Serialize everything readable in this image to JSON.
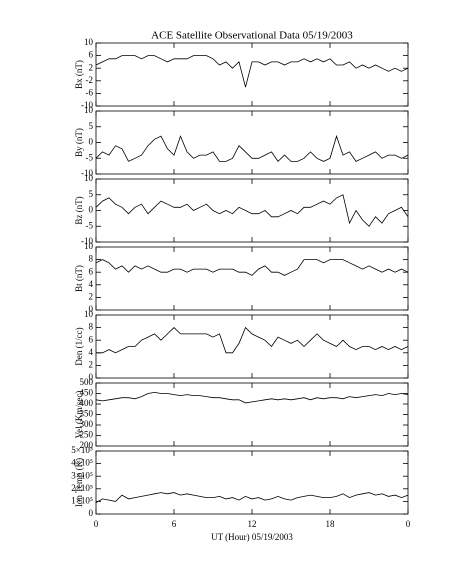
{
  "title": "ACE Satellite Observational Data  05/19/2003",
  "xlabel": "UT (Hour)  05/19/2003",
  "x": [
    0,
    0.5,
    1,
    1.5,
    2,
    2.5,
    3,
    3.5,
    4,
    4.5,
    5,
    5.5,
    6,
    6.5,
    7,
    7.5,
    8,
    8.5,
    9,
    9.5,
    10,
    10.5,
    11,
    11.5,
    12,
    12.5,
    13,
    13.5,
    14,
    14.5,
    15,
    15.5,
    16,
    16.5,
    17,
    17.5,
    18,
    18.5,
    19,
    19.5,
    20,
    20.5,
    21,
    21.5,
    22,
    22.5,
    23,
    23.5,
    24
  ],
  "xlim": [
    0,
    24
  ],
  "xticks": [
    0,
    6,
    12,
    18,
    {
      "value": 24,
      "label": "0"
    }
  ],
  "chart_data": [
    {
      "type": "line",
      "ylabel": "Bx (nT)",
      "color": "#000000",
      "ylim": [
        -10,
        10
      ],
      "yticks": [
        -10,
        -6,
        -2,
        2,
        6,
        10
      ],
      "values": [
        3,
        4,
        5,
        5,
        6,
        6,
        6,
        5,
        6,
        6,
        5,
        4,
        5,
        5,
        5,
        6,
        6,
        6,
        5,
        3,
        4,
        2,
        4,
        -4,
        4,
        4,
        3,
        4,
        4,
        3,
        4,
        4,
        5,
        4,
        5,
        4,
        5,
        3,
        3,
        4,
        2,
        3,
        2,
        3,
        2,
        1,
        2,
        1,
        2
      ]
    },
    {
      "type": "line",
      "ylabel": "By (nT)",
      "color": "#000000",
      "ylim": [
        -10,
        10
      ],
      "yticks": [
        -10,
        -5,
        0,
        5,
        10
      ],
      "values": [
        -5,
        -3,
        -4,
        -1,
        -2,
        -6,
        -5,
        -4,
        -1,
        1,
        2,
        -2,
        -4,
        2,
        -3,
        -5,
        -4,
        -4,
        -3,
        -6,
        -6,
        -5,
        -1,
        -3,
        -5,
        -5,
        -4,
        -3,
        -6,
        -4,
        -6,
        -6,
        -5,
        -3,
        -5,
        -6,
        -5,
        2,
        -4,
        -3,
        -6,
        -5,
        -4,
        -3,
        -5,
        -4,
        -4,
        -5,
        -4
      ]
    },
    {
      "type": "line",
      "ylabel": "Bz (nT)",
      "color": "#000000",
      "ylim": [
        -10,
        10
      ],
      "yticks": [
        -10,
        -5,
        0,
        5,
        10
      ],
      "values": [
        1,
        3,
        4,
        2,
        1,
        -1,
        1,
        2,
        -1,
        1,
        3,
        2,
        1,
        1,
        2,
        0,
        1,
        2,
        0,
        -1,
        0,
        -1,
        1,
        0,
        -1,
        -1,
        0,
        -2,
        -2,
        -1,
        0,
        -1,
        1,
        1,
        2,
        3,
        2,
        4,
        5,
        -4,
        0,
        -3,
        -5,
        -2,
        -4,
        -1,
        0,
        1,
        -2
      ]
    },
    {
      "type": "line",
      "ylabel": "Bt (nT)",
      "color": "#000000",
      "ylim": [
        0,
        10
      ],
      "yticks": [
        0,
        2,
        4,
        6,
        8,
        10
      ],
      "values": [
        7.5,
        8,
        7.5,
        6.5,
        7,
        6,
        7,
        6.5,
        7,
        6.5,
        6,
        6,
        6.5,
        6.5,
        6,
        6.5,
        6.5,
        6.5,
        6,
        6.5,
        6.5,
        6.5,
        6,
        6,
        5.5,
        6.5,
        7,
        6,
        6,
        5.5,
        6,
        6.5,
        8,
        8,
        8,
        7.5,
        8,
        8,
        8,
        7.5,
        7,
        6.5,
        7,
        6.5,
        6,
        6.5,
        6,
        6.5,
        6
      ]
    },
    {
      "type": "line",
      "ylabel": "Den (1/cc)",
      "color": "#000000",
      "ylim": [
        0,
        10
      ],
      "yticks": [
        0,
        2,
        4,
        6,
        8,
        10
      ],
      "values": [
        4,
        4,
        4.5,
        4,
        4.5,
        5,
        5,
        6,
        6.5,
        7,
        6,
        7,
        8,
        7,
        7,
        7,
        7,
        7,
        6.5,
        7,
        4,
        4,
        5.5,
        8,
        7,
        6.5,
        6,
        5,
        6.5,
        6,
        5.5,
        6,
        5,
        6,
        7,
        6,
        5.5,
        5,
        6,
        5,
        4.5,
        5,
        5,
        4.5,
        5,
        4.5,
        5,
        4.5,
        5
      ]
    },
    {
      "type": "line",
      "ylabel": "Vel (Km/sec)",
      "color": "#000000",
      "ylim": [
        200,
        500
      ],
      "yticks": [
        200,
        250,
        300,
        350,
        400,
        450,
        500
      ],
      "values": [
        420,
        415,
        420,
        425,
        430,
        430,
        425,
        435,
        450,
        455,
        450,
        450,
        445,
        440,
        445,
        440,
        440,
        435,
        430,
        430,
        425,
        420,
        420,
        405,
        410,
        415,
        420,
        425,
        420,
        425,
        420,
        425,
        430,
        420,
        430,
        425,
        430,
        430,
        425,
        435,
        430,
        435,
        440,
        445,
        440,
        450,
        445,
        450,
        445
      ]
    },
    {
      "type": "line",
      "ylabel": "Ion Temp (K)",
      "color": "#000000",
      "ylim": [
        0,
        500000
      ],
      "yticks": [
        0,
        {
          "value": 100000,
          "label": "1×10⁵"
        },
        {
          "value": 200000,
          "label": "2×10⁵"
        },
        {
          "value": 300000,
          "label": "3×10⁵"
        },
        {
          "value": 400000,
          "label": "4×10⁵"
        },
        {
          "value": 500000,
          "label": "5×10⁵"
        }
      ],
      "values": [
        90000,
        120000,
        110000,
        100000,
        150000,
        120000,
        130000,
        140000,
        150000,
        160000,
        170000,
        160000,
        170000,
        150000,
        160000,
        150000,
        140000,
        130000,
        130000,
        140000,
        120000,
        130000,
        110000,
        140000,
        120000,
        130000,
        110000,
        120000,
        140000,
        120000,
        110000,
        130000,
        140000,
        150000,
        140000,
        130000,
        130000,
        140000,
        160000,
        130000,
        150000,
        160000,
        170000,
        150000,
        160000,
        140000,
        150000,
        130000,
        150000
      ]
    }
  ]
}
